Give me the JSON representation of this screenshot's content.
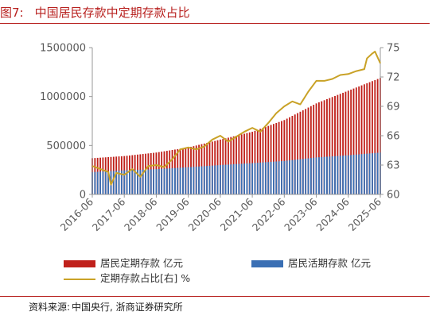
{
  "figure": {
    "number": "图7:",
    "title": "中国居民存款中定期存款占比",
    "source_label": "资料来源:",
    "source_text": "中国央行, 浙商证券研究所"
  },
  "colors": {
    "time_deposit": "#c0211b",
    "demand_deposit": "#3a6fb4",
    "ratio_line": "#c9a227",
    "brand": "#b8211f"
  },
  "chart_data": {
    "type": "bar",
    "categories": [
      "2016-06",
      "2017-06",
      "2018-06",
      "2019-06",
      "2020-06",
      "2021-06",
      "2022-06",
      "2023-06",
      "2024-06",
      "2025-06"
    ],
    "x_range": [
      "2016-06",
      "2025-06"
    ],
    "left_axis": {
      "ylim": [
        0,
        1500000
      ],
      "ticks": [
        0,
        500000,
        1000000,
        1500000
      ]
    },
    "right_axis": {
      "ylim": [
        60,
        75
      ],
      "ticks": [
        60,
        63,
        66,
        69,
        72,
        75
      ]
    },
    "legend_placement": "bottom",
    "grid": false,
    "series": [
      {
        "name": "居民定期存款 亿元",
        "kind": "bar",
        "axis": "left",
        "color_key": "time_deposit",
        "points": [
          [
            "2016-06",
            370000
          ],
          [
            "2017-06",
            392000
          ],
          [
            "2018-06",
            428000
          ],
          [
            "2019-06",
            480000
          ],
          [
            "2020-06",
            560000
          ],
          [
            "2021-06",
            640000
          ],
          [
            "2022-06",
            760000
          ],
          [
            "2023-06",
            930000
          ],
          [
            "2024-06",
            1060000
          ],
          [
            "2025-06",
            1190000
          ]
        ]
      },
      {
        "name": "居民活期存款 亿元",
        "kind": "bar",
        "axis": "left",
        "color_key": "demand_deposit",
        "points": [
          [
            "2016-06",
            228000
          ],
          [
            "2017-06",
            246000
          ],
          [
            "2018-06",
            258000
          ],
          [
            "2019-06",
            278000
          ],
          [
            "2020-06",
            300000
          ],
          [
            "2021-06",
            320000
          ],
          [
            "2022-06",
            342000
          ],
          [
            "2023-06",
            378000
          ],
          [
            "2024-06",
            400000
          ],
          [
            "2025-06",
            428000
          ]
        ]
      },
      {
        "name": "定期存款占比[右] %",
        "kind": "line",
        "axis": "right",
        "color_key": "ratio_line",
        "points": [
          [
            "2016-06",
            62.9
          ],
          [
            "2016-09",
            62.6
          ],
          [
            "2016-12",
            62.3
          ],
          [
            "2017-01",
            61.0
          ],
          [
            "2017-03",
            62.2
          ],
          [
            "2017-06",
            62.0
          ],
          [
            "2017-09",
            62.6
          ],
          [
            "2017-12",
            61.8
          ],
          [
            "2018-03",
            62.9
          ],
          [
            "2018-06",
            63.0
          ],
          [
            "2018-09",
            62.8
          ],
          [
            "2018-12",
            63.6
          ],
          [
            "2019-03",
            64.6
          ],
          [
            "2019-06",
            64.8
          ],
          [
            "2019-09",
            64.6
          ],
          [
            "2019-12",
            64.9
          ],
          [
            "2020-03",
            65.6
          ],
          [
            "2020-06",
            66.0
          ],
          [
            "2020-09",
            65.4
          ],
          [
            "2020-12",
            65.9
          ],
          [
            "2021-03",
            66.4
          ],
          [
            "2021-06",
            66.8
          ],
          [
            "2021-09",
            66.4
          ],
          [
            "2021-12",
            67.3
          ],
          [
            "2022-03",
            68.3
          ],
          [
            "2022-06",
            69.0
          ],
          [
            "2022-09",
            69.5
          ],
          [
            "2022-12",
            69.2
          ],
          [
            "2023-03",
            70.5
          ],
          [
            "2023-06",
            71.6
          ],
          [
            "2023-09",
            71.6
          ],
          [
            "2023-12",
            71.8
          ],
          [
            "2024-03",
            72.2
          ],
          [
            "2024-06",
            72.3
          ],
          [
            "2024-09",
            72.6
          ],
          [
            "2024-12",
            72.8
          ],
          [
            "2025-01",
            73.9
          ],
          [
            "2025-03",
            74.4
          ],
          [
            "2025-04",
            74.6
          ],
          [
            "2025-06",
            73.4
          ]
        ]
      }
    ]
  }
}
